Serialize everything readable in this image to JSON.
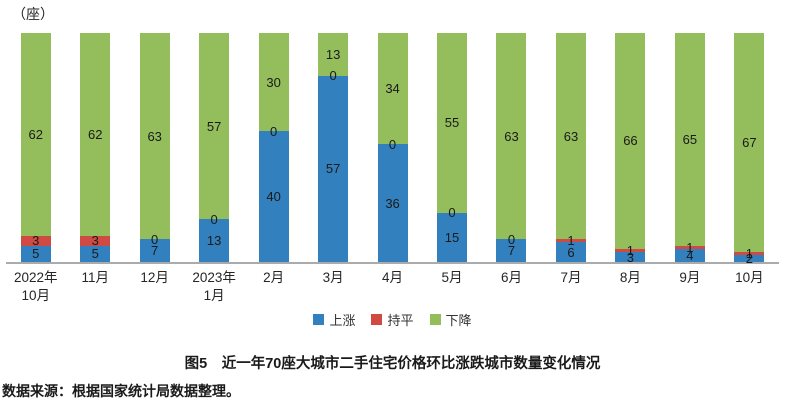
{
  "unit_label": "（座）",
  "caption": "图5　近一年70座大城市二手住宅价格环比涨跌城市数量变化情况",
  "source": "数据来源：根据国家统计局数据整理。",
  "chart_data": {
    "type": "bar",
    "stacked": true,
    "title": "图5　近一年70座大城市二手住宅价格环比涨跌城市数量变化情况",
    "ylabel": "（座）",
    "ylim": [
      0,
      70
    ],
    "grid": false,
    "data_labels": true,
    "legend_position": "bottom",
    "axis_line_color": "#ababab",
    "categories": [
      "2022年\n10月",
      "11月",
      "12月",
      "2023年\n1月",
      "2月",
      "3月",
      "4月",
      "5月",
      "6月",
      "7月",
      "8月",
      "9月",
      "10月"
    ],
    "series": [
      {
        "key": "rising",
        "name": "上涨",
        "color": "#3380be",
        "values": [
          5,
          5,
          7,
          13,
          40,
          57,
          36,
          15,
          7,
          6,
          3,
          4,
          2
        ]
      },
      {
        "key": "flat",
        "name": "持平",
        "color": "#cf4a42",
        "values": [
          3,
          3,
          0,
          0,
          0,
          0,
          0,
          0,
          0,
          1,
          1,
          1,
          1
        ]
      },
      {
        "key": "falling",
        "name": "下降",
        "color": "#94bd5c",
        "values": [
          62,
          62,
          63,
          57,
          30,
          13,
          34,
          55,
          63,
          63,
          66,
          65,
          67
        ]
      }
    ]
  }
}
